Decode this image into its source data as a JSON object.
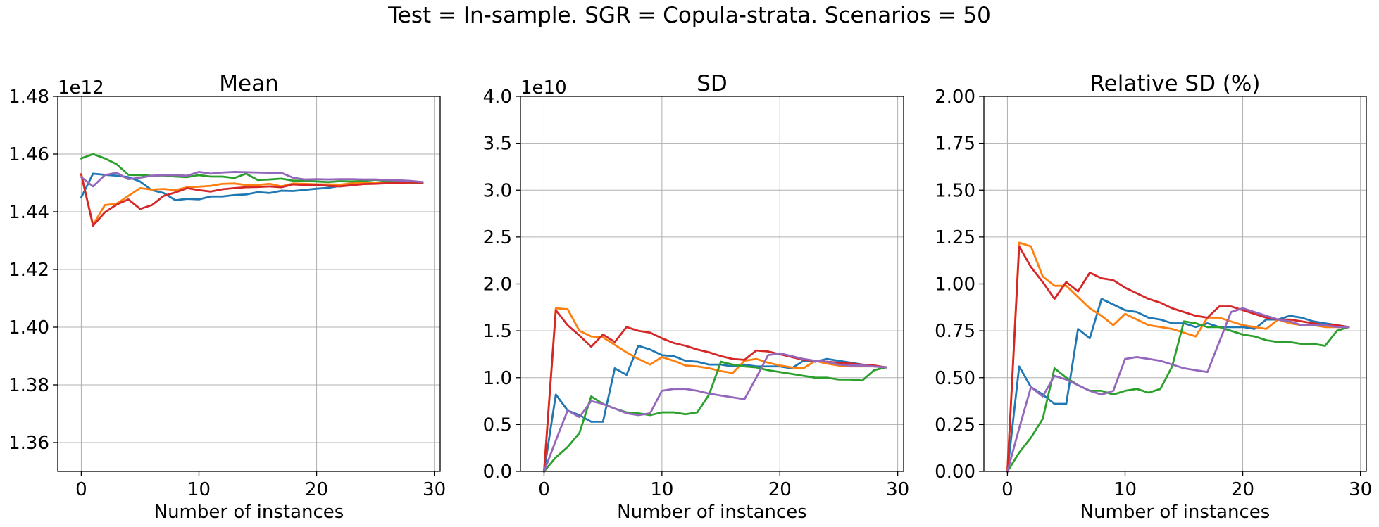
{
  "figure": {
    "suptitle": "Test = In-sample. SGR = Copula-strata. Scenarios = 50"
  },
  "colors": {
    "series": [
      "#1f77b4",
      "#ff7f0e",
      "#2ca02c",
      "#d62728",
      "#9467bd"
    ],
    "grid": "#b0b0b0",
    "axis": "#000000"
  },
  "chart_data": [
    {
      "type": "line",
      "title": "Mean",
      "xlabel": "Number of instances",
      "ylabel": "",
      "offset_text": "1e12",
      "xlim": [
        -2,
        30.5
      ],
      "ylim": [
        1.35,
        1.48
      ],
      "xticks": [
        0,
        10,
        20,
        30
      ],
      "yticks": [
        1.36,
        1.38,
        1.4,
        1.42,
        1.44,
        1.46,
        1.48
      ],
      "ytick_labels": [
        "1.36",
        "1.38",
        "1.40",
        "1.42",
        "1.44",
        "1.46",
        "1.48"
      ],
      "grid": true,
      "x": [
        0,
        1,
        2,
        3,
        4,
        5,
        6,
        7,
        8,
        9,
        10,
        11,
        12,
        13,
        14,
        15,
        16,
        17,
        18,
        19,
        20,
        21,
        22,
        23,
        24,
        25,
        26,
        27,
        28,
        29
      ],
      "series": [
        {
          "values": [
            1.445,
            1.4532,
            1.4528,
            1.4525,
            1.452,
            1.4505,
            1.4475,
            1.4465,
            1.444,
            1.4445,
            1.4443,
            1.4453,
            1.4453,
            1.4458,
            1.446,
            1.4468,
            1.4465,
            1.4473,
            1.4472,
            1.4476,
            1.448,
            1.4483,
            1.449,
            1.4493,
            1.4497,
            1.4499,
            1.4501,
            1.4502,
            1.4503,
            1.4503
          ]
        },
        {
          "values": [
            1.4527,
            1.4355,
            1.4423,
            1.4428,
            1.4455,
            1.4482,
            1.4477,
            1.4479,
            1.4475,
            1.4485,
            1.4487,
            1.449,
            1.4497,
            1.4498,
            1.4493,
            1.4493,
            1.4497,
            1.4488,
            1.4498,
            1.4497,
            1.4495,
            1.4495,
            1.4494,
            1.4499,
            1.4502,
            1.4501,
            1.45,
            1.4501,
            1.4499,
            1.4502
          ]
        },
        {
          "values": [
            1.4585,
            1.46,
            1.4585,
            1.4565,
            1.4528,
            1.4527,
            1.4525,
            1.4526,
            1.4522,
            1.452,
            1.4527,
            1.4522,
            1.4522,
            1.4517,
            1.4532,
            1.451,
            1.4512,
            1.4515,
            1.4508,
            1.4508,
            1.4505,
            1.4503,
            1.4506,
            1.4505,
            1.4507,
            1.4511,
            1.4506,
            1.4505,
            1.4501,
            1.4501
          ]
        },
        {
          "values": [
            1.453,
            1.4352,
            1.4398,
            1.4425,
            1.4443,
            1.441,
            1.4423,
            1.4455,
            1.4467,
            1.4482,
            1.4475,
            1.447,
            1.4478,
            1.4482,
            1.4485,
            1.4486,
            1.4488,
            1.4485,
            1.4495,
            1.4493,
            1.4493,
            1.449,
            1.4488,
            1.4492,
            1.4496,
            1.4497,
            1.4499,
            1.45,
            1.4502,
            1.4501
          ]
        },
        {
          "values": [
            1.452,
            1.4488,
            1.4527,
            1.4535,
            1.4513,
            1.4518,
            1.4525,
            1.4527,
            1.4527,
            1.4525,
            1.4538,
            1.4532,
            1.4536,
            1.4538,
            1.4537,
            1.4536,
            1.4535,
            1.4535,
            1.4518,
            1.4512,
            1.4513,
            1.4512,
            1.4513,
            1.4513,
            1.4512,
            1.4512,
            1.451,
            1.4509,
            1.4507,
            1.4503
          ]
        }
      ]
    },
    {
      "type": "line",
      "title": "SD",
      "xlabel": "Number of instances",
      "ylabel": "",
      "offset_text": "1e10",
      "xlim": [
        -2,
        30.5
      ],
      "ylim": [
        0,
        4.0
      ],
      "xticks": [
        0,
        10,
        20,
        30
      ],
      "yticks": [
        0,
        0.5,
        1.0,
        1.5,
        2.0,
        2.5,
        3.0,
        3.5,
        4.0
      ],
      "ytick_labels": [
        "0.0",
        "0.5",
        "1.0",
        "1.5",
        "2.0",
        "2.5",
        "3.0",
        "3.5",
        "4.0"
      ],
      "grid": true,
      "x": [
        0,
        1,
        2,
        3,
        4,
        5,
        6,
        7,
        8,
        9,
        10,
        11,
        12,
        13,
        14,
        15,
        16,
        17,
        18,
        19,
        20,
        21,
        22,
        23,
        24,
        25,
        26,
        27,
        28,
        29
      ],
      "series": [
        {
          "values": [
            0,
            0.82,
            0.65,
            0.6,
            0.53,
            0.53,
            1.1,
            1.03,
            1.34,
            1.3,
            1.24,
            1.23,
            1.18,
            1.17,
            1.14,
            1.14,
            1.12,
            1.14,
            1.12,
            1.12,
            1.12,
            1.1,
            1.18,
            1.17,
            1.2,
            1.18,
            1.16,
            1.14,
            1.12,
            1.11
          ]
        },
        {
          "values": [
            0,
            1.74,
            1.73,
            1.5,
            1.44,
            1.43,
            1.35,
            1.27,
            1.2,
            1.14,
            1.22,
            1.18,
            1.13,
            1.12,
            1.1,
            1.07,
            1.05,
            1.18,
            1.2,
            1.16,
            1.13,
            1.11,
            1.1,
            1.18,
            1.15,
            1.13,
            1.12,
            1.12,
            1.12,
            1.11
          ]
        },
        {
          "values": [
            0,
            0.15,
            0.26,
            0.41,
            0.8,
            0.72,
            0.67,
            0.63,
            0.62,
            0.6,
            0.63,
            0.63,
            0.61,
            0.63,
            0.82,
            1.17,
            1.14,
            1.12,
            1.11,
            1.08,
            1.06,
            1.04,
            1.02,
            1.0,
            1.0,
            0.98,
            0.98,
            0.97,
            1.08,
            1.11
          ]
        },
        {
          "values": [
            0,
            1.72,
            1.56,
            1.45,
            1.33,
            1.46,
            1.38,
            1.54,
            1.5,
            1.48,
            1.42,
            1.37,
            1.34,
            1.3,
            1.27,
            1.23,
            1.2,
            1.19,
            1.29,
            1.28,
            1.25,
            1.22,
            1.19,
            1.18,
            1.17,
            1.16,
            1.15,
            1.14,
            1.13,
            1.11
          ]
        },
        {
          "values": [
            0,
            0.33,
            0.65,
            0.58,
            0.75,
            0.72,
            0.67,
            0.62,
            0.6,
            0.62,
            0.86,
            0.88,
            0.88,
            0.86,
            0.83,
            0.81,
            0.79,
            0.77,
            1.0,
            1.24,
            1.26,
            1.23,
            1.2,
            1.18,
            1.17,
            1.14,
            1.13,
            1.13,
            1.12,
            1.11
          ]
        }
      ]
    },
    {
      "type": "line",
      "title": "Relative SD (%)",
      "xlabel": "Number of instances",
      "ylabel": "",
      "offset_text": "",
      "xlim": [
        -2,
        30.5
      ],
      "ylim": [
        0,
        2.0
      ],
      "xticks": [
        0,
        10,
        20,
        30
      ],
      "yticks": [
        0,
        0.25,
        0.5,
        0.75,
        1.0,
        1.25,
        1.5,
        1.75,
        2.0
      ],
      "ytick_labels": [
        "0.00",
        "0.25",
        "0.50",
        "0.75",
        "1.00",
        "1.25",
        "1.50",
        "1.75",
        "2.00"
      ],
      "grid": true,
      "x": [
        0,
        1,
        2,
        3,
        4,
        5,
        6,
        7,
        8,
        9,
        10,
        11,
        12,
        13,
        14,
        15,
        16,
        17,
        18,
        19,
        20,
        21,
        22,
        23,
        24,
        25,
        26,
        27,
        28,
        29
      ],
      "series": [
        {
          "values": [
            0,
            0.56,
            0.45,
            0.41,
            0.36,
            0.36,
            0.76,
            0.71,
            0.92,
            0.89,
            0.86,
            0.85,
            0.82,
            0.81,
            0.79,
            0.79,
            0.77,
            0.79,
            0.77,
            0.77,
            0.77,
            0.76,
            0.81,
            0.81,
            0.83,
            0.82,
            0.8,
            0.79,
            0.78,
            0.77
          ]
        },
        {
          "values": [
            0,
            1.22,
            1.2,
            1.04,
            0.99,
            0.99,
            0.93,
            0.87,
            0.83,
            0.78,
            0.84,
            0.81,
            0.78,
            0.77,
            0.76,
            0.74,
            0.72,
            0.82,
            0.82,
            0.8,
            0.78,
            0.77,
            0.76,
            0.81,
            0.79,
            0.78,
            0.78,
            0.77,
            0.77,
            0.77
          ]
        },
        {
          "values": [
            0,
            0.1,
            0.18,
            0.28,
            0.55,
            0.5,
            0.46,
            0.43,
            0.43,
            0.41,
            0.43,
            0.44,
            0.42,
            0.44,
            0.56,
            0.8,
            0.79,
            0.77,
            0.77,
            0.75,
            0.73,
            0.72,
            0.7,
            0.69,
            0.69,
            0.68,
            0.68,
            0.67,
            0.75,
            0.77
          ]
        },
        {
          "values": [
            0,
            1.2,
            1.09,
            1.01,
            0.92,
            1.01,
            0.96,
            1.06,
            1.03,
            1.02,
            0.98,
            0.95,
            0.92,
            0.9,
            0.87,
            0.85,
            0.83,
            0.82,
            0.88,
            0.88,
            0.86,
            0.84,
            0.82,
            0.81,
            0.81,
            0.8,
            0.79,
            0.78,
            0.78,
            0.77
          ]
        },
        {
          "values": [
            0,
            0.23,
            0.45,
            0.4,
            0.51,
            0.49,
            0.46,
            0.43,
            0.41,
            0.43,
            0.6,
            0.61,
            0.6,
            0.59,
            0.57,
            0.55,
            0.54,
            0.53,
            0.69,
            0.85,
            0.87,
            0.85,
            0.83,
            0.81,
            0.8,
            0.78,
            0.78,
            0.78,
            0.77,
            0.77
          ]
        }
      ]
    }
  ]
}
